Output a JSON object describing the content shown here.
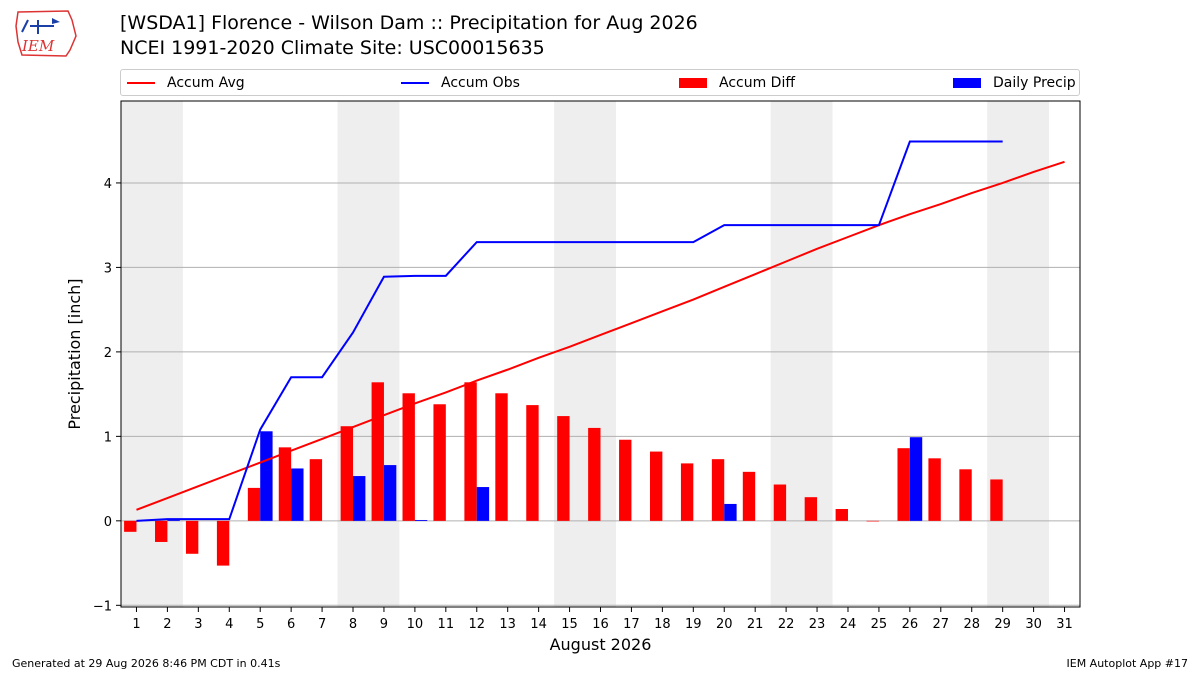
{
  "header": {
    "title_line1": "[WSDA1] Florence - Wilson Dam :: Precipitation for Aug 2026",
    "title_line2": "NCEI 1991-2020 Climate Site: USC00015635",
    "logo_text": "IEM"
  },
  "footer": {
    "generated": "Generated at 29 Aug 2026 8:46 PM CDT in 0.41s",
    "app": "IEM Autoplot App #17"
  },
  "legend": [
    {
      "label": "Accum Avg",
      "kind": "line",
      "color": "#ff0000"
    },
    {
      "label": "Accum Obs",
      "kind": "line",
      "color": "#0000ff"
    },
    {
      "label": "Accum Diff",
      "kind": "box",
      "color": "#ff0000"
    },
    {
      "label": "Daily Precip",
      "kind": "box",
      "color": "#0000ff"
    }
  ],
  "chart_data": {
    "type": "bar",
    "xlabel": "August 2026",
    "ylabel": "Precipitation [inch]",
    "xlim": [
      0.5,
      31.5
    ],
    "ylim": [
      -1.02,
      4.97
    ],
    "yticks": [
      -1,
      0,
      1,
      2,
      3,
      4
    ],
    "days": [
      1,
      2,
      3,
      4,
      5,
      6,
      7,
      8,
      9,
      10,
      11,
      12,
      13,
      14,
      15,
      16,
      17,
      18,
      19,
      20,
      21,
      22,
      23,
      24,
      25,
      26,
      27,
      28,
      29,
      30,
      31
    ],
    "weekend_shading": [
      [
        0.5,
        2.5
      ],
      [
        7.5,
        9.5
      ],
      [
        14.5,
        16.5
      ],
      [
        21.5,
        23.5
      ],
      [
        28.5,
        30.5
      ]
    ],
    "grid": true,
    "series": [
      {
        "name": "Accum Avg",
        "type": "line",
        "color": "#ff0000",
        "values": [
          0.13,
          0.27,
          0.41,
          0.55,
          0.69,
          0.83,
          0.97,
          1.11,
          1.25,
          1.39,
          1.52,
          1.66,
          1.79,
          1.93,
          2.06,
          2.2,
          2.34,
          2.48,
          2.62,
          2.77,
          2.92,
          3.07,
          3.22,
          3.36,
          3.5,
          3.63,
          3.75,
          3.88,
          4.0,
          4.13,
          4.25
        ]
      },
      {
        "name": "Accum Obs",
        "type": "line",
        "color": "#0000ff",
        "values": [
          0.0,
          0.02,
          0.02,
          0.02,
          1.08,
          1.7,
          1.7,
          2.23,
          2.89,
          2.9,
          2.9,
          3.3,
          3.3,
          3.3,
          3.3,
          3.3,
          3.3,
          3.3,
          3.3,
          3.5,
          3.5,
          3.5,
          3.5,
          3.5,
          3.5,
          4.49,
          4.49,
          4.49,
          4.49
        ]
      },
      {
        "name": "Accum Diff",
        "type": "bar",
        "color": "#ff0000",
        "values": [
          -0.13,
          -0.25,
          -0.39,
          -0.53,
          0.39,
          0.87,
          0.73,
          1.12,
          1.64,
          1.51,
          1.38,
          1.64,
          1.51,
          1.37,
          1.24,
          1.1,
          0.96,
          0.82,
          0.68,
          0.73,
          0.58,
          0.43,
          0.28,
          0.14,
          0.0,
          0.86,
          0.74,
          0.61,
          0.49
        ]
      },
      {
        "name": "Daily Precip",
        "type": "bar",
        "color": "#0000ff",
        "values": [
          0.0,
          0.02,
          0.0,
          0.0,
          1.06,
          0.62,
          0.0,
          0.53,
          0.66,
          0.01,
          0.0,
          0.4,
          0.0,
          0.0,
          0.0,
          0.0,
          0.0,
          0.0,
          0.0,
          0.2,
          0.0,
          0.0,
          0.0,
          0.0,
          0.0,
          0.99,
          0.0,
          0.0,
          0.0
        ]
      }
    ]
  }
}
